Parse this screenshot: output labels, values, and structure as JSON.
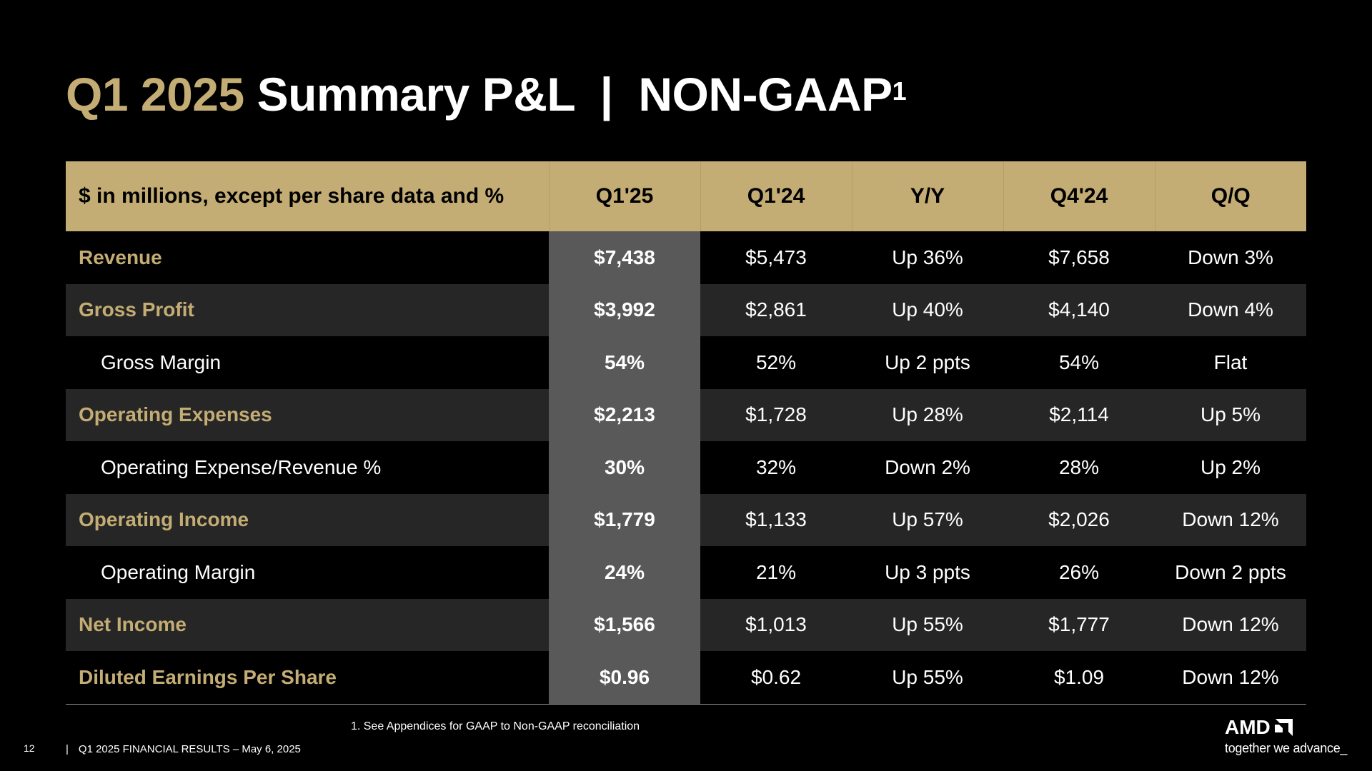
{
  "title": {
    "highlight": "Q1 2025",
    "main": "Summary P&L  |  NON-GAAP",
    "superscript": "1"
  },
  "table": {
    "headers": [
      "$ in millions, except per share data and %",
      "Q1'25",
      "Q1'24",
      "Y/Y",
      "Q4'24",
      "Q/Q"
    ],
    "rows": [
      {
        "label": "Revenue",
        "style": "major",
        "values": [
          "$7,438",
          "$5,473",
          "Up 36%",
          "$7,658",
          "Down 3%"
        ]
      },
      {
        "label": "Gross Profit",
        "style": "major",
        "values": [
          "$3,992",
          "$2,861",
          "Up 40%",
          "$4,140",
          "Down 4%"
        ]
      },
      {
        "label": "Gross Margin",
        "style": "sub",
        "values": [
          "54%",
          "52%",
          "Up 2 ppts",
          "54%",
          "Flat"
        ]
      },
      {
        "label": "Operating Expenses",
        "style": "major",
        "values": [
          "$2,213",
          "$1,728",
          "Up 28%",
          "$2,114",
          "Up 5%"
        ]
      },
      {
        "label": "Operating Expense/Revenue %",
        "style": "sub",
        "values": [
          "30%",
          "32%",
          "Down 2%",
          "28%",
          "Up 2%"
        ]
      },
      {
        "label": "Operating Income",
        "style": "major",
        "values": [
          "$1,779",
          "$1,133",
          "Up 57%",
          "$2,026",
          "Down 12%"
        ]
      },
      {
        "label": "Operating Margin",
        "style": "sub",
        "values": [
          "24%",
          "21%",
          "Up 3 ppts",
          "26%",
          "Down 2 ppts"
        ]
      },
      {
        "label": "Net Income",
        "style": "major",
        "values": [
          "$1,566",
          "$1,013",
          "Up 55%",
          "$1,777",
          "Down 12%"
        ]
      },
      {
        "label": "Diluted Earnings Per Share",
        "style": "major",
        "values": [
          "$0.96",
          "$0.62",
          "Up 55%",
          "$1.09",
          "Down 12%"
        ]
      }
    ]
  },
  "footnote": "1. See Appendices for GAAP to Non-GAAP reconciliation",
  "footer": {
    "page_number": "12",
    "separator": "|",
    "text": "Q1 2025 FINANCIAL RESULTS – May 6, 2025"
  },
  "logo": {
    "wordmark": "AMD",
    "tagline": "together we advance_",
    "icon": "amd-arrow-icon"
  },
  "colors": {
    "gold": "#c4ad74",
    "background": "#000000",
    "row_alt": "#262626",
    "highlight_column": "#595959"
  }
}
